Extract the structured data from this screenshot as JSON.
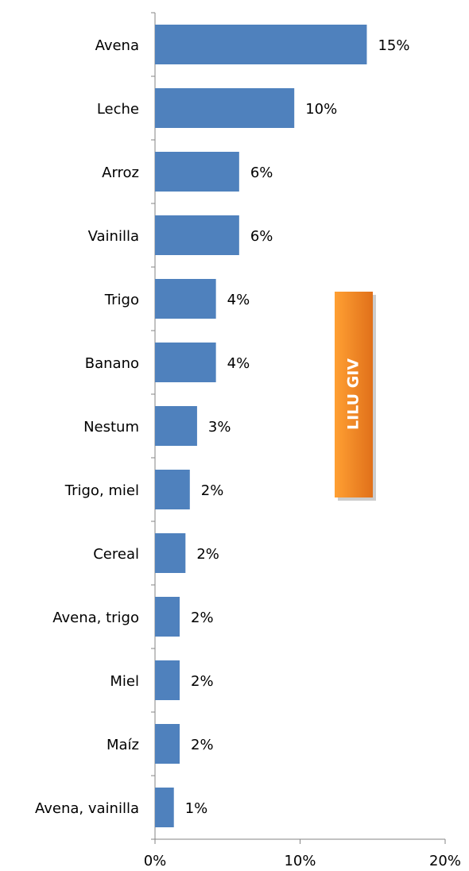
{
  "chart_data": {
    "type": "bar",
    "orientation": "horizontal",
    "categories": [
      "Avena",
      "Leche",
      "Arroz",
      "Vainilla",
      "Trigo",
      "Banano",
      "Nestum",
      "Trigo, miel",
      "Cereal",
      "Avena, trigo",
      "Miel",
      "Maíz",
      "Avena, vainilla"
    ],
    "values": [
      14.6,
      9.6,
      5.8,
      5.8,
      4.2,
      4.2,
      2.9,
      2.4,
      2.1,
      1.7,
      1.7,
      1.7,
      1.3
    ],
    "value_labels": [
      "15%",
      "10%",
      "6%",
      "6%",
      "4%",
      "4%",
      "3%",
      "2%",
      "2%",
      "2%",
      "2%",
      "2%",
      "1%"
    ],
    "color": "#4f81bd",
    "xlim": [
      0,
      20
    ],
    "xticks": [
      {
        "value": 0,
        "label": "0%"
      },
      {
        "value": 10,
        "label": "10%"
      },
      {
        "value": 20,
        "label": "20%"
      }
    ],
    "annotation": "LILU GIV"
  }
}
